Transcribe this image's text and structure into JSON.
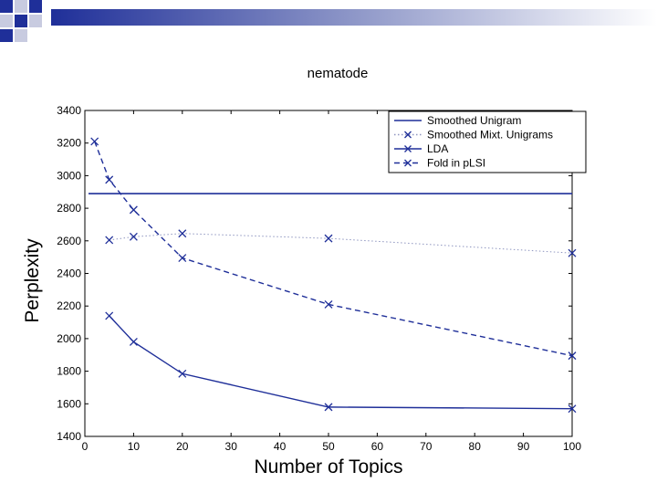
{
  "slide": {
    "title": "nematode"
  },
  "colors": {
    "accent": "#1f2f99",
    "deco_dark": "#1f2f99",
    "deco_light": "#c8cbe0"
  },
  "chart_data": {
    "type": "line",
    "title": "",
    "xlabel": "Number of Topics",
    "ylabel": "Perplexity",
    "xlim": [
      0,
      100
    ],
    "ylim": [
      1400,
      3400
    ],
    "xticks": [
      0,
      10,
      20,
      30,
      40,
      50,
      60,
      70,
      80,
      90,
      100
    ],
    "yticks": [
      1400,
      1600,
      1800,
      2000,
      2200,
      2400,
      2600,
      2800,
      3000,
      3200,
      3400
    ],
    "grid": false,
    "legend_position": "top-right",
    "series": [
      {
        "name": "Smoothed Unigram",
        "style": "solid",
        "marker": "none",
        "x": [
          0,
          100
        ],
        "y": [
          2890,
          2890
        ]
      },
      {
        "name": "Smoothed Mixt. Unigrams",
        "style": "dotted",
        "marker": "x",
        "x": [
          5,
          10,
          20,
          50,
          100
        ],
        "y": [
          2605,
          2625,
          2645,
          2615,
          2525
        ]
      },
      {
        "name": "LDA",
        "style": "solid",
        "marker": "x",
        "x": [
          5,
          10,
          20,
          50,
          100
        ],
        "y": [
          2140,
          1980,
          1785,
          1580,
          1570
        ]
      },
      {
        "name": "Fold in pLSI",
        "style": "dashed",
        "marker": "x",
        "x": [
          2,
          5,
          10,
          20,
          50,
          100
        ],
        "y": [
          3210,
          2975,
          2790,
          2495,
          2210,
          1895
        ]
      }
    ]
  }
}
